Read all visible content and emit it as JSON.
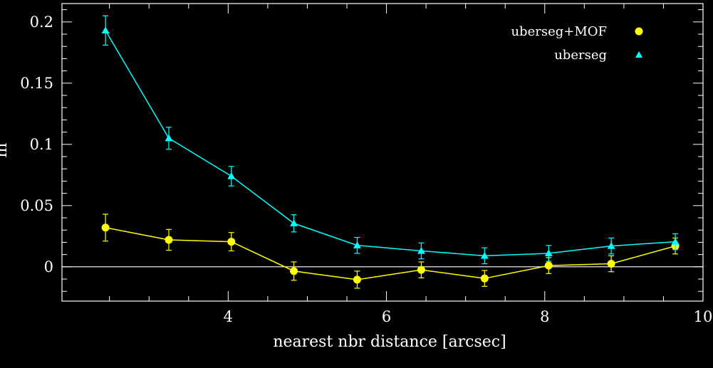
{
  "chart_data": {
    "type": "line",
    "xlabel": "nearest nbr distance [arcsec]",
    "ylabel": "m",
    "xlim": [
      1.9,
      10
    ],
    "ylim": [
      -0.028,
      0.215
    ],
    "x_ticks": [
      4,
      6,
      8,
      10
    ],
    "x_tick_labels": [
      "4",
      "6",
      "8",
      "10"
    ],
    "y_ticks": [
      0,
      0.05,
      0.1,
      0.15,
      0.2
    ],
    "y_tick_labels": [
      "0",
      "0.05",
      "0.1",
      "0.15",
      "0.2"
    ],
    "zero_line": true,
    "grid": false,
    "legend_position": "top-right",
    "series": [
      {
        "name": "uberseg+MOF",
        "color": "#ffff00",
        "marker": "circle",
        "x": [
          2.45,
          3.25,
          4.04,
          4.83,
          5.63,
          6.44,
          7.24,
          8.05,
          8.84,
          9.65
        ],
        "y": [
          0.032,
          0.022,
          0.0205,
          -0.0035,
          -0.0105,
          -0.0025,
          -0.0095,
          0.001,
          0.0025,
          0.017
        ],
        "err": [
          0.011,
          0.0085,
          0.0075,
          0.0075,
          0.007,
          0.0065,
          0.0065,
          0.0065,
          0.0065,
          0.0065
        ]
      },
      {
        "name": "uberseg",
        "color": "#00ffff",
        "marker": "triangle",
        "x": [
          2.45,
          3.25,
          4.04,
          4.83,
          5.63,
          6.44,
          7.24,
          8.05,
          8.84,
          9.65
        ],
        "y": [
          0.193,
          0.105,
          0.074,
          0.0355,
          0.0175,
          0.013,
          0.009,
          0.011,
          0.017,
          0.0205
        ],
        "err": [
          0.012,
          0.009,
          0.008,
          0.007,
          0.0065,
          0.0065,
          0.0065,
          0.0065,
          0.0065,
          0.0065
        ]
      }
    ]
  },
  "colors": {
    "background": "#000000",
    "axes": "#ffffff"
  }
}
